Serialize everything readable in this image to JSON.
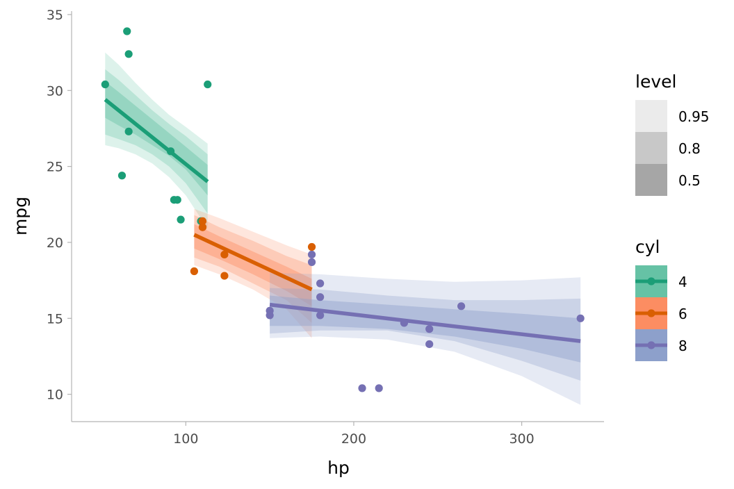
{
  "chart_data": {
    "type": "scatter",
    "title": "",
    "xlabel": "hp",
    "ylabel": "mpg",
    "xlim": [
      32,
      349
    ],
    "ylim": [
      8.2,
      35.5
    ],
    "grid": false,
    "x_ticks": [
      100,
      200,
      300
    ],
    "y_ticks": [
      10,
      15,
      20,
      25,
      30,
      35
    ],
    "interval_legend": {
      "title": "level",
      "levels": [
        "0.95",
        "0.8",
        "0.5"
      ],
      "colors": [
        "#ebebeb",
        "#c8c8c8",
        "#a6a6a6"
      ]
    },
    "group_legend": {
      "title": "cyl",
      "position": "right"
    },
    "series": [
      {
        "name": "4",
        "point_color": "#1b9e77",
        "band_color": "#66c2a5",
        "points": [
          {
            "x": 52,
            "y": 30.4
          },
          {
            "x": 65,
            "y": 33.9
          },
          {
            "x": 66,
            "y": 32.4
          },
          {
            "x": 66,
            "y": 27.3
          },
          {
            "x": 113,
            "y": 30.4
          },
          {
            "x": 62,
            "y": 24.4
          },
          {
            "x": 91,
            "y": 26.0
          },
          {
            "x": 93,
            "y": 22.8
          },
          {
            "x": 95,
            "y": 22.8
          },
          {
            "x": 97,
            "y": 21.5
          },
          {
            "x": 109,
            "y": 21.4
          }
        ],
        "fit": {
          "x": [
            52,
            113
          ],
          "y": [
            29.4,
            24.0
          ]
        },
        "bands": {
          "x": [
            52,
            60,
            70,
            80,
            90,
            100,
            113
          ],
          "b95_lo": [
            26.4,
            26.2,
            25.8,
            25.2,
            24.3,
            23.1,
            20.9
          ],
          "b95_hi": [
            32.5,
            31.7,
            30.5,
            29.4,
            28.4,
            27.6,
            26.5
          ],
          "b80_lo": [
            27.1,
            26.8,
            26.4,
            25.8,
            25.0,
            23.9,
            21.9
          ],
          "b80_hi": [
            31.4,
            30.7,
            29.7,
            28.7,
            27.8,
            27.0,
            25.8
          ],
          "b50_lo": [
            28.2,
            27.7,
            27.1,
            26.4,
            25.7,
            24.8,
            23.1
          ],
          "b50_hi": [
            30.6,
            29.9,
            29.0,
            28.1,
            27.2,
            26.3,
            25.1
          ]
        }
      },
      {
        "name": "6",
        "point_color": "#d95f02",
        "band_color": "#fc8d62",
        "points": [
          {
            "x": 110,
            "y": 21.0
          },
          {
            "x": 110,
            "y": 21.4
          },
          {
            "x": 110,
            "y": 21.0
          },
          {
            "x": 105,
            "y": 18.1
          },
          {
            "x": 123,
            "y": 19.2
          },
          {
            "x": 123,
            "y": 17.8
          },
          {
            "x": 175,
            "y": 19.7
          }
        ],
        "fit": {
          "x": [
            105,
            175
          ],
          "y": [
            20.5,
            16.9
          ]
        },
        "bands": {
          "x": [
            105,
            120,
            140,
            160,
            175
          ],
          "b95_lo": [
            18.5,
            17.9,
            16.9,
            15.6,
            13.7
          ],
          "b95_hi": [
            22.2,
            21.6,
            20.7,
            19.8,
            19.2
          ],
          "b80_lo": [
            19.0,
            18.4,
            17.3,
            16.2,
            14.7
          ],
          "b80_hi": [
            21.8,
            21.0,
            20.1,
            19.1,
            18.5
          ],
          "b50_lo": [
            19.6,
            18.9,
            17.9,
            16.8,
            15.8
          ],
          "b50_hi": [
            21.2,
            20.4,
            19.4,
            18.4,
            17.6
          ]
        }
      },
      {
        "name": "8",
        "point_color": "#7570b3",
        "band_color": "#8da0cb",
        "points": [
          {
            "x": 175,
            "y": 18.7
          },
          {
            "x": 245,
            "y": 14.3
          },
          {
            "x": 180,
            "y": 16.4
          },
          {
            "x": 180,
            "y": 17.3
          },
          {
            "x": 180,
            "y": 15.2
          },
          {
            "x": 205,
            "y": 10.4
          },
          {
            "x": 215,
            "y": 10.4
          },
          {
            "x": 230,
            "y": 14.7
          },
          {
            "x": 150,
            "y": 15.5
          },
          {
            "x": 150,
            "y": 15.2
          },
          {
            "x": 245,
            "y": 13.3
          },
          {
            "x": 175,
            "y": 19.2
          },
          {
            "x": 264,
            "y": 15.8
          },
          {
            "x": 335,
            "y": 15.0
          }
        ],
        "fit": {
          "x": [
            150,
            335
          ],
          "y": [
            15.9,
            13.5
          ]
        },
        "bands": {
          "x": [
            150,
            180,
            220,
            260,
            300,
            335
          ],
          "b95_lo": [
            13.7,
            13.8,
            13.6,
            12.8,
            11.2,
            9.3
          ],
          "b95_hi": [
            18.0,
            17.9,
            17.6,
            17.4,
            17.5,
            17.7
          ],
          "b80_lo": [
            14.0,
            14.2,
            14.2,
            13.5,
            12.2,
            10.9
          ],
          "b80_hi": [
            17.0,
            16.9,
            16.5,
            16.2,
            16.2,
            16.3
          ],
          "b50_lo": [
            14.5,
            14.5,
            14.3,
            13.8,
            13.0,
            12.1
          ],
          "b50_hi": [
            16.5,
            16.2,
            15.9,
            15.6,
            15.3,
            15.0
          ]
        }
      }
    ]
  }
}
